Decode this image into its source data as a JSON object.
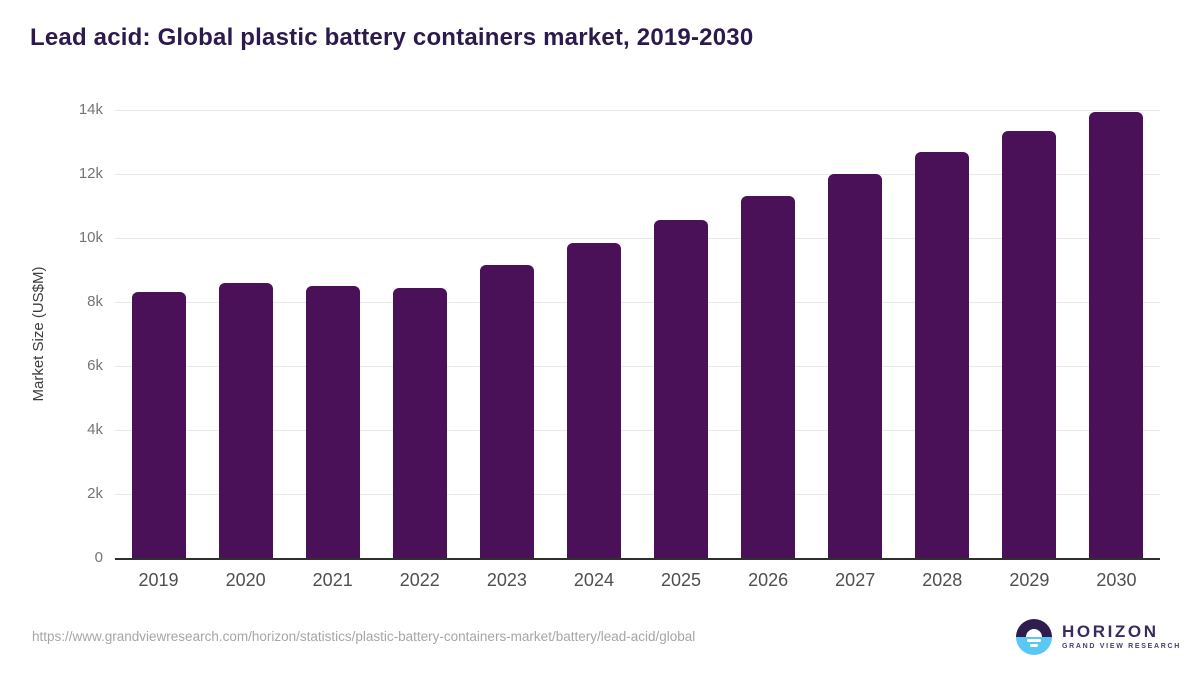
{
  "header": {
    "title": "Lead acid: Global plastic battery containers market, 2019-2030",
    "title_color": "#2d1a4d"
  },
  "chart_data": {
    "type": "bar",
    "title": "Lead acid: Global plastic battery containers market, 2019-2030",
    "categories": [
      "2019",
      "2020",
      "2021",
      "2022",
      "2023",
      "2024",
      "2025",
      "2026",
      "2027",
      "2028",
      "2029",
      "2030"
    ],
    "values": [
      8300,
      8600,
      8500,
      8450,
      9150,
      9850,
      10550,
      11300,
      12000,
      12700,
      13350,
      13950
    ],
    "series_name": "Market Size",
    "xlabel": "",
    "ylabel": "Market Size (US$M)",
    "ylim": [
      0,
      14000
    ],
    "yticks": [
      {
        "value": 0,
        "label": "0"
      },
      {
        "value": 2000,
        "label": "2k"
      },
      {
        "value": 4000,
        "label": "4k"
      },
      {
        "value": 6000,
        "label": "6k"
      },
      {
        "value": 8000,
        "label": "8k"
      },
      {
        "value": 10000,
        "label": "10k"
      },
      {
        "value": 12000,
        "label": "12k"
      },
      {
        "value": 14000,
        "label": "14k"
      }
    ],
    "grid": "horizontal",
    "legend": "none",
    "bar_color": "#4a1158",
    "gridline_color": "#e9e9e9",
    "axis_line_color": "#2f2f2f"
  },
  "footer": {
    "source_url": "https://www.grandviewresearch.com/horizon/statistics/plastic-battery-containers-market/battery/lead-acid/global",
    "logo": {
      "brand": "HORIZON",
      "subbrand": "GRAND VIEW RESEARCH",
      "circle_top_color": "#2e1d4e",
      "circle_bottom_color": "#5ac8f5",
      "text_color": "#3a2a5f"
    }
  }
}
